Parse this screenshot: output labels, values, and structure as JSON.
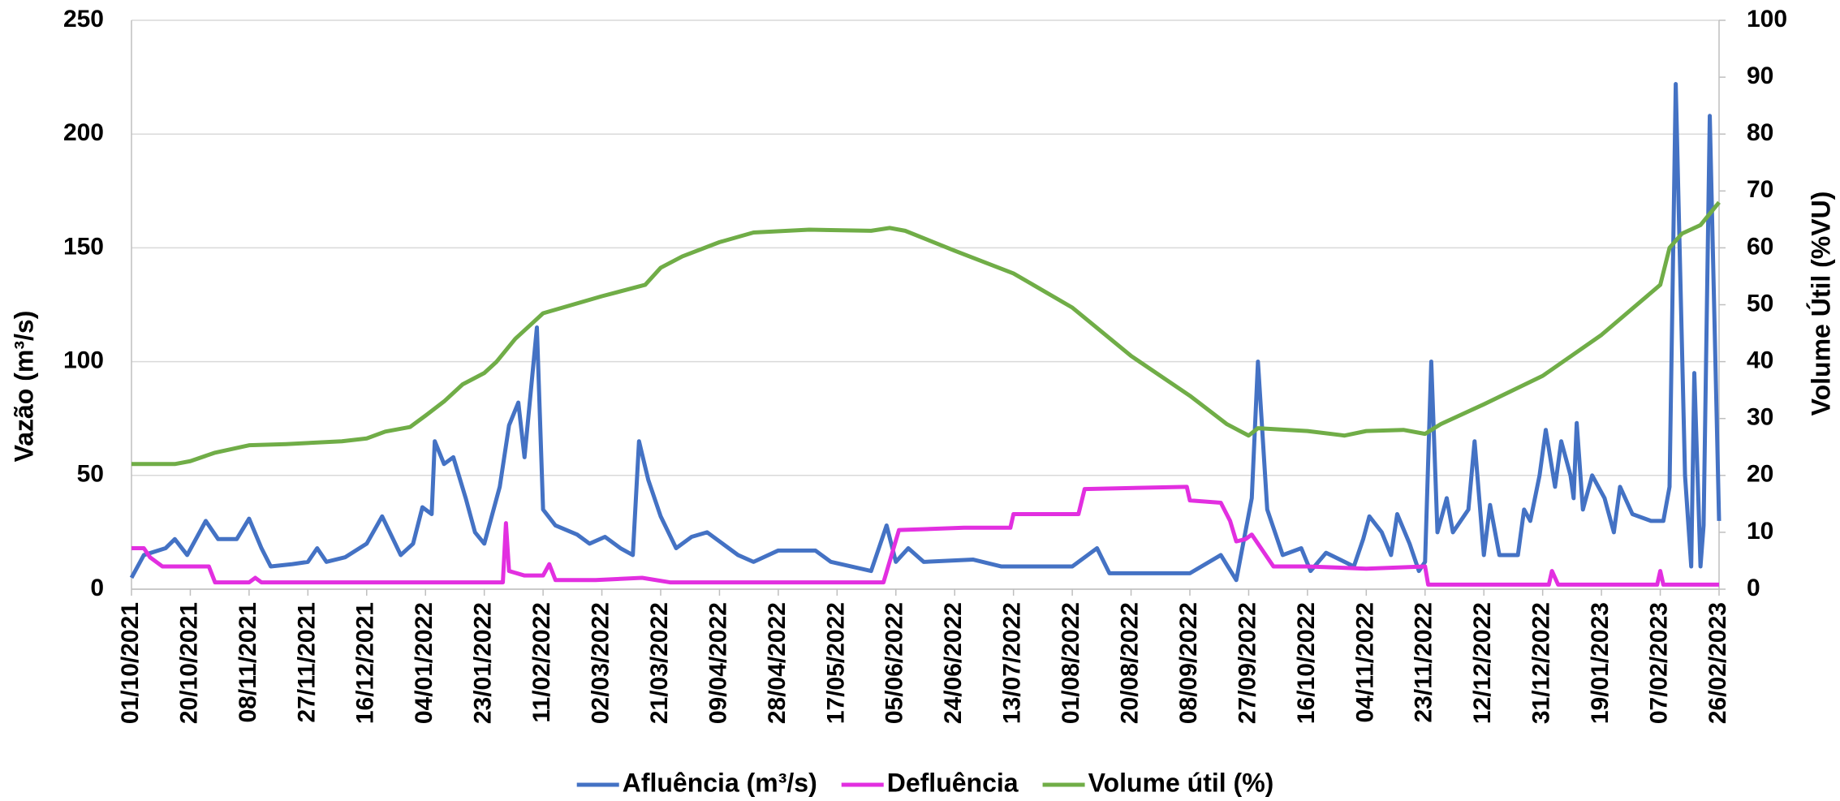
{
  "chart_data": {
    "type": "line",
    "y_label": "Vazão (m³/s)",
    "y2_label": "Volume Útil (%VU)",
    "xlim": [
      "01/10/2021",
      "26/02/2023"
    ],
    "xticks": [
      "01/10/2021",
      "20/10/2021",
      "08/11/2021",
      "27/11/2021",
      "16/12/2021",
      "04/01/2022",
      "23/01/2022",
      "11/02/2022",
      "02/03/2022",
      "21/03/2022",
      "09/04/2022",
      "28/04/2022",
      "17/05/2022",
      "05/06/2022",
      "24/06/2022",
      "13/07/2022",
      "01/08/2022",
      "20/08/2022",
      "08/09/2022",
      "27/09/2022",
      "16/10/2022",
      "04/11/2022",
      "23/11/2022",
      "12/12/2022",
      "31/12/2022",
      "19/01/2023",
      "07/02/2023",
      "26/02/2023"
    ],
    "ylim": [
      0,
      250
    ],
    "yticks": [
      0,
      50,
      100,
      150,
      200,
      250
    ],
    "y2lim": [
      0,
      100
    ],
    "y2ticks": [
      0,
      10,
      20,
      30,
      40,
      50,
      60,
      70,
      80,
      90,
      100
    ],
    "grid": true,
    "legend": "bottom",
    "series": [
      {
        "name": "Afluência (m³/s)",
        "color": "#4472c4",
        "x": [
          "01/10/2021",
          "05/10/2021",
          "12/10/2021",
          "15/10/2021",
          "19/10/2021",
          "25/10/2021",
          "29/10/2021",
          "04/11/2021",
          "08/11/2021",
          "12/11/2021",
          "15/11/2021",
          "22/11/2021",
          "27/11/2021",
          "30/11/2021",
          "03/12/2021",
          "09/12/2021",
          "16/12/2021",
          "21/12/2021",
          "27/12/2021",
          "31/12/2021",
          "03/01/2022",
          "06/01/2022",
          "07/01/2022",
          "10/01/2022",
          "13/01/2022",
          "17/01/2022",
          "20/01/2022",
          "23/01/2022",
          "28/01/2022",
          "31/01/2022",
          "03/02/2022",
          "05/02/2022",
          "09/02/2022",
          "11/02/2022",
          "15/02/2022",
          "22/02/2022",
          "26/02/2022",
          "03/03/2022",
          "08/03/2022",
          "12/03/2022",
          "14/03/2022",
          "17/03/2022",
          "21/03/2022",
          "26/03/2022",
          "31/03/2022",
          "05/04/2022",
          "10/04/2022",
          "15/04/2022",
          "20/04/2022",
          "28/04/2022",
          "10/05/2022",
          "15/05/2022",
          "28/05/2022",
          "02/06/2022",
          "05/06/2022",
          "09/06/2022",
          "14/06/2022",
          "30/06/2022",
          "09/07/2022",
          "01/08/2022",
          "09/08/2022",
          "13/08/2022",
          "08/09/2022",
          "18/09/2022",
          "23/09/2022",
          "28/09/2022",
          "30/09/2022",
          "03/10/2022",
          "08/10/2022",
          "14/10/2022",
          "17/10/2022",
          "22/10/2022",
          "31/10/2022",
          "03/11/2022",
          "05/11/2022",
          "09/11/2022",
          "12/11/2022",
          "14/11/2022",
          "18/11/2022",
          "21/11/2022",
          "23/11/2022",
          "25/11/2022",
          "27/11/2022",
          "30/11/2022",
          "02/12/2022",
          "07/12/2022",
          "09/12/2022",
          "12/12/2022",
          "14/12/2022",
          "17/12/2022",
          "23/12/2022",
          "25/12/2022",
          "27/12/2022",
          "30/12/2022",
          "01/01/2023",
          "04/01/2023",
          "06/01/2023",
          "09/01/2023",
          "10/01/2023",
          "11/01/2023",
          "13/01/2023",
          "16/01/2023",
          "20/01/2023",
          "23/01/2023",
          "25/01/2023",
          "29/01/2023",
          "04/02/2023",
          "08/02/2023",
          "10/02/2023",
          "12/02/2023",
          "15/02/2023",
          "17/02/2023",
          "18/02/2023",
          "20/02/2023",
          "21/02/2023",
          "23/02/2023",
          "26/02/2023"
        ],
        "values": [
          5,
          15,
          18,
          22,
          15,
          30,
          22,
          22,
          31,
          18,
          10,
          11,
          12,
          18,
          12,
          14,
          20,
          32,
          15,
          20,
          36,
          33,
          65,
          55,
          58,
          40,
          25,
          20,
          45,
          72,
          82,
          58,
          115,
          35,
          28,
          24,
          20,
          23,
          18,
          15,
          65,
          48,
          32,
          18,
          23,
          25,
          20,
          15,
          12,
          17,
          17,
          12,
          8,
          28,
          12,
          18,
          12,
          13,
          10,
          10,
          18,
          7,
          7,
          15,
          4,
          40,
          100,
          35,
          15,
          18,
          8,
          16,
          10,
          22,
          32,
          25,
          15,
          33,
          20,
          8,
          12,
          100,
          25,
          40,
          25,
          35,
          65,
          15,
          37,
          15,
          15,
          35,
          30,
          50,
          70,
          45,
          65,
          50,
          40,
          73,
          35,
          50,
          40,
          25,
          45,
          33,
          30,
          30,
          45,
          222,
          50,
          10,
          95,
          10,
          28,
          208,
          30
        ]
      },
      {
        "name": "Defluência",
        "color": "#e22fe0",
        "x": [
          "01/10/2021",
          "05/10/2021",
          "07/10/2021",
          "11/10/2021",
          "26/10/2021",
          "28/10/2021",
          "08/11/2021",
          "10/11/2021",
          "12/11/2021",
          "29/01/2022",
          "30/01/2022",
          "31/01/2022",
          "05/02/2022",
          "11/02/2022",
          "13/02/2022",
          "15/02/2022",
          "28/02/2022",
          "15/03/2022",
          "24/03/2022",
          "01/06/2022",
          "06/06/2022",
          "27/06/2022",
          "12/07/2022",
          "13/07/2022",
          "03/08/2022",
          "05/08/2022",
          "07/09/2022",
          "08/09/2022",
          "18/09/2022",
          "21/09/2022",
          "23/09/2022",
          "26/09/2022",
          "28/09/2022",
          "02/10/2022",
          "05/10/2022",
          "16/10/2022",
          "04/11/2022",
          "23/11/2022",
          "24/11/2022",
          "02/01/2023",
          "03/01/2023",
          "05/01/2023",
          "06/02/2023",
          "07/02/2023",
          "08/02/2023",
          "26/02/2023"
        ],
        "values": [
          18,
          18,
          14,
          10,
          10,
          3,
          3,
          5,
          3,
          3,
          29,
          8,
          6,
          6,
          11,
          4,
          4,
          5,
          3,
          3,
          26,
          27,
          27,
          33,
          33,
          44,
          45,
          39,
          38,
          30,
          21,
          22,
          24,
          16,
          10,
          10,
          9,
          10,
          2,
          2,
          8,
          2,
          2,
          8,
          2,
          2
        ]
      },
      {
        "name": "Volume útil (%)",
        "color": "#70ad47",
        "axis": "y2",
        "x": [
          "01/10/2021",
          "15/10/2021",
          "20/10/2021",
          "28/10/2021",
          "08/11/2021",
          "20/11/2021",
          "08/12/2021",
          "16/12/2021",
          "22/12/2021",
          "30/12/2021",
          "04/01/2022",
          "10/01/2022",
          "16/01/2022",
          "23/01/2022",
          "27/01/2022",
          "02/02/2022",
          "08/02/2022",
          "11/02/2022",
          "02/03/2022",
          "16/03/2022",
          "21/03/2022",
          "28/03/2022",
          "09/04/2022",
          "20/04/2022",
          "08/05/2022",
          "28/05/2022",
          "03/06/2022",
          "08/06/2022",
          "24/06/2022",
          "13/07/2022",
          "01/08/2022",
          "20/08/2022",
          "08/09/2022",
          "20/09/2022",
          "27/09/2022",
          "30/09/2022",
          "16/10/2022",
          "28/10/2022",
          "04/11/2022",
          "16/11/2022",
          "23/11/2022",
          "28/11/2022",
          "12/12/2022",
          "31/12/2022",
          "19/01/2023",
          "07/02/2023",
          "10/02/2023",
          "14/02/2023",
          "20/02/2023",
          "26/02/2023"
        ],
        "values": [
          22,
          22,
          22.5,
          24,
          25.3,
          25.5,
          26,
          26.5,
          27.7,
          28.5,
          30.5,
          33,
          36,
          38,
          40,
          44,
          47,
          48.5,
          51.5,
          53.5,
          56.5,
          58.5,
          61,
          62.7,
          63.2,
          63,
          63.5,
          63,
          59.5,
          55.5,
          49.5,
          41,
          34,
          29,
          27,
          28.3,
          27.8,
          27,
          27.8,
          28,
          27.3,
          29,
          32.5,
          37.5,
          44.7,
          53.5,
          60,
          62.5,
          64,
          68
        ]
      }
    ]
  }
}
